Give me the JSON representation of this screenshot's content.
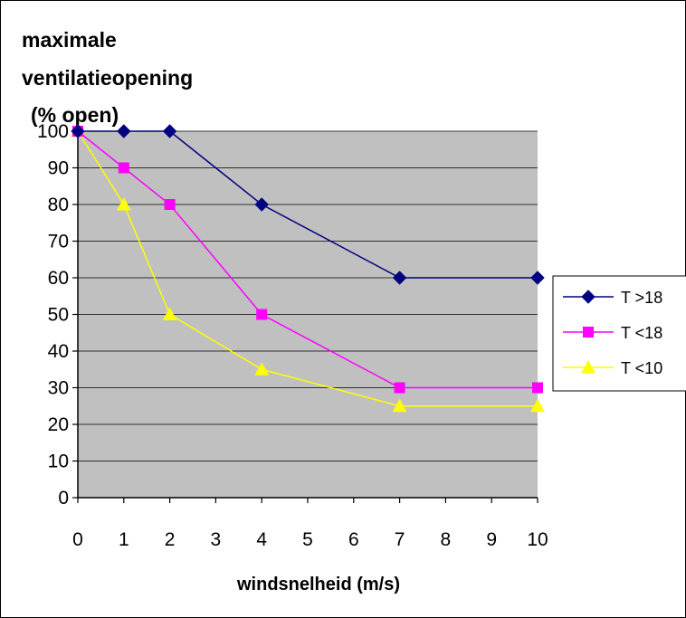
{
  "chart_data": {
    "type": "line",
    "title_lines": [
      "maximale",
      "ventilatieopening",
      "(% open)"
    ],
    "xlabel": "windsnelheid (m/s)",
    "ylabel": "",
    "x_ticks": [
      0,
      1,
      2,
      3,
      4,
      5,
      6,
      7,
      8,
      9,
      10
    ],
    "y_ticks": [
      0,
      10,
      20,
      30,
      40,
      50,
      60,
      70,
      80,
      90,
      100
    ],
    "xlim": [
      0,
      10
    ],
    "ylim": [
      0,
      100
    ],
    "grid": true,
    "plot_background": "#c0c0c0",
    "legend_position": "right",
    "series": [
      {
        "name": "T >18",
        "color": "#000080",
        "marker": "diamond",
        "x": [
          0,
          1,
          2,
          4,
          7,
          10
        ],
        "y": [
          100,
          100,
          100,
          80,
          60,
          60
        ]
      },
      {
        "name": "T <18",
        "color": "#ff00ff",
        "marker": "square",
        "x": [
          0,
          1,
          2,
          4,
          7,
          10
        ],
        "y": [
          100,
          90,
          80,
          50,
          30,
          30
        ]
      },
      {
        "name": "T <10",
        "color": "#ffff00",
        "marker": "triangle",
        "x": [
          0,
          1,
          2,
          4,
          7,
          10
        ],
        "y": [
          100,
          80,
          50,
          35,
          25,
          25
        ]
      }
    ]
  }
}
